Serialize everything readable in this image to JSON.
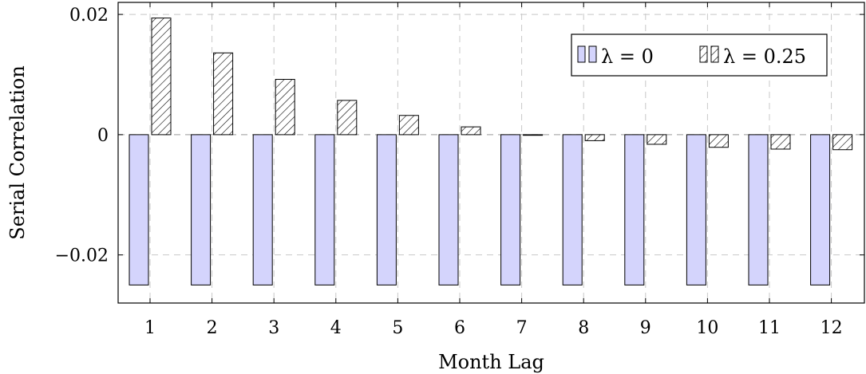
{
  "chart_data": {
    "type": "bar",
    "xlabel": "Month Lag",
    "ylabel": "Serial Correlation",
    "categories": [
      "1",
      "2",
      "3",
      "4",
      "5",
      "6",
      "7",
      "8",
      "9",
      "10",
      "11",
      "12"
    ],
    "ylim": [
      -0.028,
      0.022
    ],
    "yticks": [
      -0.02,
      0,
      0.02
    ],
    "ytick_labels": [
      "−0.02",
      "0",
      "0.02"
    ],
    "grid": true,
    "legend_position": "top-right",
    "series": [
      {
        "name": "λ = 0",
        "color": "#d4d4fc",
        "pattern": "solid",
        "values": [
          -0.025,
          -0.025,
          -0.025,
          -0.025,
          -0.025,
          -0.025,
          -0.025,
          -0.025,
          -0.025,
          -0.025,
          -0.025,
          -0.025
        ]
      },
      {
        "name": "λ = 0.25",
        "color": "#ffffff",
        "pattern": "hatch",
        "values": [
          0.0194,
          0.0136,
          0.0092,
          0.0057,
          0.0032,
          0.0013,
          0.0,
          -0.001,
          -0.0016,
          -0.0021,
          -0.0024,
          -0.0025
        ]
      }
    ]
  }
}
